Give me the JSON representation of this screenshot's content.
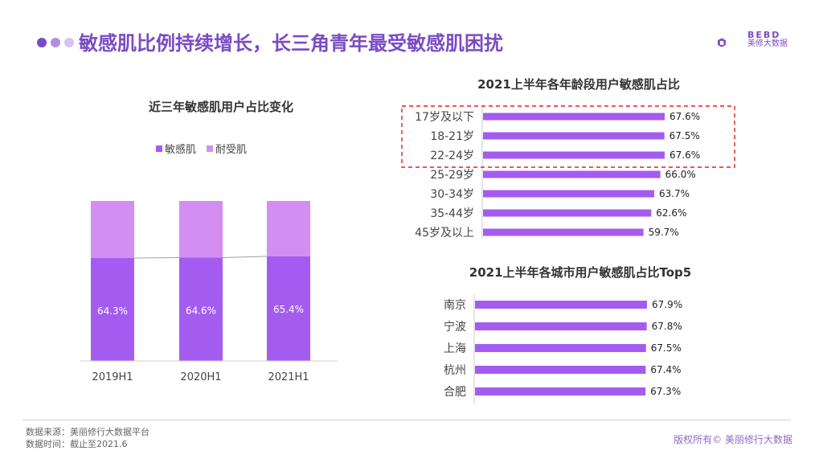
{
  "page": {
    "title": "敏感肌比例持续增长，长三角青年最受敏感肌困扰",
    "logo": {
      "brand": "BEBD",
      "name": "美修大数据"
    },
    "source_line": "数据来源：美丽修行大数据平台",
    "time_line": "数据时间：截止至2021.6",
    "copyright": "版权所有© 美丽修行大数据",
    "colors": {
      "accent": "#7b4bc4",
      "sensitive": "#a45cf0",
      "tolerant": "#d38ef2",
      "bar": "#a45cf0",
      "highlight_border": "#e02020"
    }
  },
  "chart_data": [
    {
      "type": "bar",
      "stacked": true,
      "title": "近三年敏感肌用户占比变化",
      "categories": [
        "2019H1",
        "2020H1",
        "2021H1"
      ],
      "series": [
        {
          "name": "敏感肌",
          "values": [
            64.3,
            64.6,
            65.4
          ],
          "labels": [
            "64.3%",
            "64.6%",
            "65.4%"
          ]
        },
        {
          "name": "耐受肌",
          "values": [
            35.7,
            35.4,
            34.6
          ]
        }
      ],
      "ylim": [
        0,
        100
      ],
      "legend": "top-center"
    },
    {
      "type": "bar",
      "orientation": "horizontal",
      "title": "2021上半年各年龄段用户敏感肌占比",
      "categories": [
        "17岁及以下",
        "18-21岁",
        "22-24岁",
        "25-29岁",
        "30-34岁",
        "35-44岁",
        "45岁及以上"
      ],
      "values": [
        67.6,
        67.5,
        67.6,
        66.0,
        63.7,
        62.6,
        59.7
      ],
      "labels": [
        "67.6%",
        "67.5%",
        "67.6%",
        "66.0%",
        "63.7%",
        "62.6%",
        "59.7%"
      ],
      "highlight_categories": [
        "17岁及以下",
        "18-21岁",
        "22-24岁"
      ]
    },
    {
      "type": "bar",
      "orientation": "horizontal",
      "title": "2021上半年各城市用户敏感肌占比Top5",
      "categories": [
        "南京",
        "宁波",
        "上海",
        "杭州",
        "合肥"
      ],
      "values": [
        67.9,
        67.8,
        67.5,
        67.4,
        67.3
      ],
      "labels": [
        "67.9%",
        "67.8%",
        "67.5%",
        "67.4%",
        "67.3%"
      ]
    }
  ]
}
